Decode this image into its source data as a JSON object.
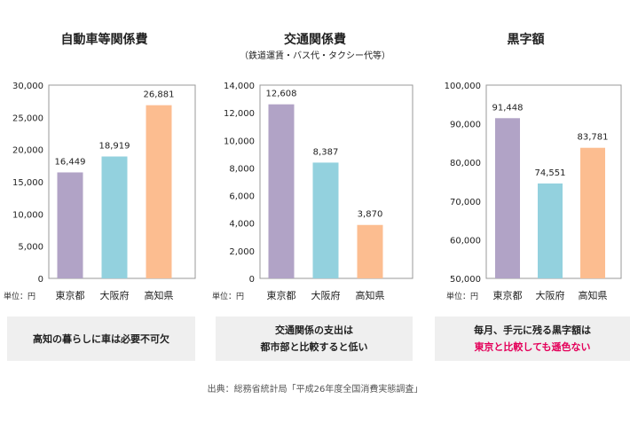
{
  "chart_data": [
    {
      "type": "bar",
      "title": "自動車等関係費",
      "subtitle": "",
      "categories": [
        "東京都",
        "大阪府",
        "高知県"
      ],
      "values": [
        16449,
        18919,
        26881
      ],
      "value_labels": [
        "16,449",
        "18,919",
        "26,881"
      ],
      "ylim": [
        0,
        30000
      ],
      "yticks": [
        "0",
        "5,000",
        "10,000",
        "15,000",
        "20,000",
        "25,000",
        "30,000"
      ],
      "unit_label": "単位：円",
      "colors": [
        "#b1a3c6",
        "#93d1de",
        "#fcbd90"
      ],
      "caption": [
        "高知の暮らしに車は必要不可欠"
      ]
    },
    {
      "type": "bar",
      "title": "交通関係費",
      "subtitle": "（鉄道運賃・バス代・タクシー代等）",
      "categories": [
        "東京都",
        "大阪府",
        "高知県"
      ],
      "values": [
        12608,
        8387,
        3870
      ],
      "value_labels": [
        "12,608",
        "8,387",
        "3,870"
      ],
      "ylim": [
        0,
        14000
      ],
      "yticks": [
        "0",
        "2,000",
        "4,000",
        "6,000",
        "8,000",
        "10,000",
        "12,000",
        "14,000"
      ],
      "unit_label": "単位：円",
      "colors": [
        "#b1a3c6",
        "#93d1de",
        "#fcbd90"
      ],
      "caption": [
        "交通関係の支出は",
        "都市部と比較すると低い"
      ]
    },
    {
      "type": "bar",
      "title": "黒字額",
      "subtitle": "",
      "categories": [
        "東京都",
        "大阪府",
        "高知県"
      ],
      "values": [
        91448,
        74551,
        83781
      ],
      "value_labels": [
        "91,448",
        "74,551",
        "83,781"
      ],
      "ylim": [
        50000,
        100000
      ],
      "yticks": [
        "50,000",
        "60,000",
        "70,000",
        "80,000",
        "90,000",
        "100,000"
      ],
      "unit_label": "単位：円",
      "colors": [
        "#b1a3c6",
        "#93d1de",
        "#fcbd90"
      ],
      "caption": [
        "毎月、手元に残る黒字額は",
        "東京と比較しても遜色ない"
      ]
    }
  ],
  "source": "出典：総務省統計局「平成26年度全国消費実態調査」"
}
